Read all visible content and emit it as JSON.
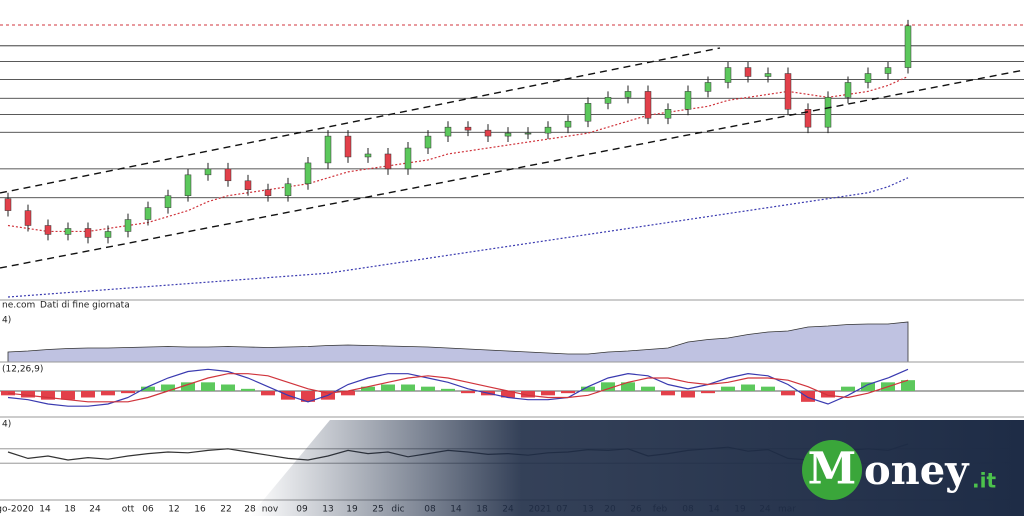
{
  "chart_data": [
    {
      "type": "candlestick",
      "source": "ne.com",
      "subtitle": "Dati di fine giornata",
      "open": [
        34,
        30,
        25,
        22,
        24,
        21,
        23,
        27,
        31,
        35,
        42,
        44,
        40,
        37,
        35,
        39,
        46,
        55,
        48,
        49,
        44,
        51,
        55,
        58,
        57,
        55,
        56,
        56,
        58,
        60,
        66,
        68,
        70,
        61,
        64,
        70,
        73,
        78,
        75,
        76,
        64,
        58,
        68,
        73,
        76,
        78
      ],
      "high": [
        36,
        32,
        27,
        26,
        26,
        25,
        29,
        33,
        37,
        44,
        46,
        46,
        42,
        39,
        41,
        48,
        57,
        57,
        51,
        51,
        53,
        57,
        60,
        60,
        59,
        58,
        58,
        60,
        62,
        68,
        70,
        72,
        72,
        66,
        72,
        75,
        80,
        80,
        78,
        78,
        66,
        70,
        75,
        78,
        80,
        94
      ],
      "low": [
        28,
        23,
        20,
        20,
        19,
        19,
        21,
        25,
        29,
        33,
        40,
        38,
        35,
        33,
        33,
        37,
        44,
        46,
        46,
        42,
        42,
        49,
        53,
        55,
        53,
        53,
        54,
        54,
        56,
        58,
        64,
        66,
        59,
        59,
        62,
        68,
        71,
        73,
        73,
        62,
        56,
        56,
        66,
        71,
        74,
        76
      ],
      "close": [
        30,
        25,
        22,
        24,
        21,
        23,
        27,
        31,
        35,
        42,
        44,
        40,
        37,
        35,
        39,
        46,
        55,
        48,
        49,
        44,
        51,
        55,
        58,
        57,
        55,
        56,
        56,
        58,
        60,
        66,
        68,
        70,
        61,
        64,
        70,
        73,
        78,
        75,
        76,
        64,
        58,
        68,
        73,
        76,
        78,
        92
      ],
      "up_color": "#5cc85c",
      "down_color": "#e2404a",
      "overlays": [
        {
          "color": "#d0343c",
          "values": [
            25,
            24,
            23,
            23,
            23,
            24,
            25,
            26,
            28,
            30,
            33,
            35,
            36,
            37,
            38,
            39,
            41,
            43,
            44,
            45,
            46,
            47,
            49,
            50,
            51,
            52,
            53,
            54,
            55,
            56,
            58,
            60,
            62,
            63,
            64,
            65,
            67,
            68,
            69,
            70,
            69,
            68,
            69,
            70,
            72,
            75
          ]
        },
        {
          "color": "#3a3ab0",
          "values": [
            1,
            1.5,
            2,
            2.5,
            3,
            3.5,
            4,
            4.5,
            5,
            5.5,
            6,
            6.5,
            7,
            7.5,
            8,
            8.5,
            9,
            10,
            11,
            12,
            13,
            14,
            15,
            16,
            17,
            18,
            19,
            20,
            21,
            22,
            23,
            24,
            25,
            26,
            27,
            28,
            29,
            30,
            31,
            32,
            33,
            34,
            35,
            36,
            38,
            41
          ]
        }
      ],
      "resistance": 92.3,
      "resistance_color": "#d0343c",
      "levels": [
        85.3,
        80,
        74,
        67.7,
        62.3,
        56.3,
        44,
        34.3
      ],
      "ylim": [
        0,
        100
      ]
    },
    {
      "type": "area",
      "label": "4)",
      "color": "#8a8fc8",
      "values": [
        20,
        22,
        25,
        27,
        28,
        28,
        29,
        30,
        31,
        30,
        30,
        31,
        30,
        29,
        30,
        31,
        33,
        34,
        33,
        32,
        31,
        30,
        28,
        26,
        24,
        22,
        20,
        18,
        16,
        16,
        20,
        22,
        25,
        28,
        40,
        45,
        48,
        55,
        60,
        62,
        70,
        72,
        75,
        76,
        76,
        80
      ],
      "ylim": [
        0,
        100
      ]
    },
    {
      "type": "macd",
      "label": "(12,26,9)",
      "up_color": "#5cc85c",
      "down_color": "#e2404a",
      "histogram": [
        -2,
        -3,
        -4,
        -4,
        -3,
        -2,
        -1,
        2,
        3,
        4,
        4,
        3,
        1,
        -2,
        -4,
        -5,
        -4,
        -2,
        2,
        3,
        3,
        2,
        1,
        -1,
        -2,
        -3,
        -3,
        -2,
        -1,
        2,
        4,
        4,
        2,
        -2,
        -3,
        -1,
        2,
        3,
        2,
        -2,
        -5,
        -3,
        2,
        4,
        4,
        5
      ],
      "macd": [
        -3,
        -4,
        -6,
        -7,
        -7,
        -6,
        -3,
        2,
        6,
        9,
        10,
        9,
        6,
        2,
        -2,
        -5,
        -2,
        3,
        6,
        8,
        8,
        6,
        4,
        1,
        -1,
        -3,
        -4,
        -4,
        -3,
        2,
        6,
        8,
        7,
        3,
        1,
        3,
        6,
        8,
        7,
        3,
        -3,
        -6,
        -2,
        3,
        6,
        10
      ],
      "signal": [
        -1,
        -2,
        -3,
        -4,
        -5,
        -5,
        -5,
        -3,
        0,
        3,
        6,
        8,
        8,
        7,
        4,
        1,
        -1,
        0,
        2,
        4,
        6,
        7,
        6,
        4,
        2,
        0,
        -2,
        -3,
        -3,
        -2,
        1,
        4,
        6,
        6,
        4,
        3,
        4,
        6,
        6,
        5,
        2,
        -2,
        -3,
        -1,
        2,
        5
      ],
      "macd_color": "#3a3ab0",
      "signal_color": "#d0343c",
      "ylim": [
        -12,
        12
      ]
    },
    {
      "type": "line",
      "label": "4)",
      "color": "#333",
      "values": [
        60,
        52,
        55,
        50,
        53,
        51,
        55,
        58,
        60,
        59,
        62,
        64,
        60,
        56,
        52,
        50,
        55,
        62,
        58,
        60,
        54,
        58,
        62,
        60,
        57,
        58,
        56,
        59,
        60,
        63,
        62,
        64,
        55,
        58,
        62,
        64,
        66,
        61,
        63,
        52,
        50,
        58,
        62,
        64,
        62,
        70
      ],
      "levels": [
        64,
        46
      ],
      "ylim": [
        0,
        100
      ]
    }
  ],
  "x_axis_labels": [
    "go-2020",
    "14",
    "18",
    "24",
    "ott",
    "06",
    "12",
    "16",
    "22",
    "28",
    "nov",
    "09",
    "13",
    "19",
    "25",
    "dic",
    "08",
    "14",
    "18",
    "24",
    "2021",
    "07",
    "13",
    "20",
    "26",
    "feb",
    "08",
    "14",
    "19",
    "24",
    "mar"
  ],
  "logo": {
    "initial": "M",
    "rest": "oney",
    "tld": ".it"
  }
}
